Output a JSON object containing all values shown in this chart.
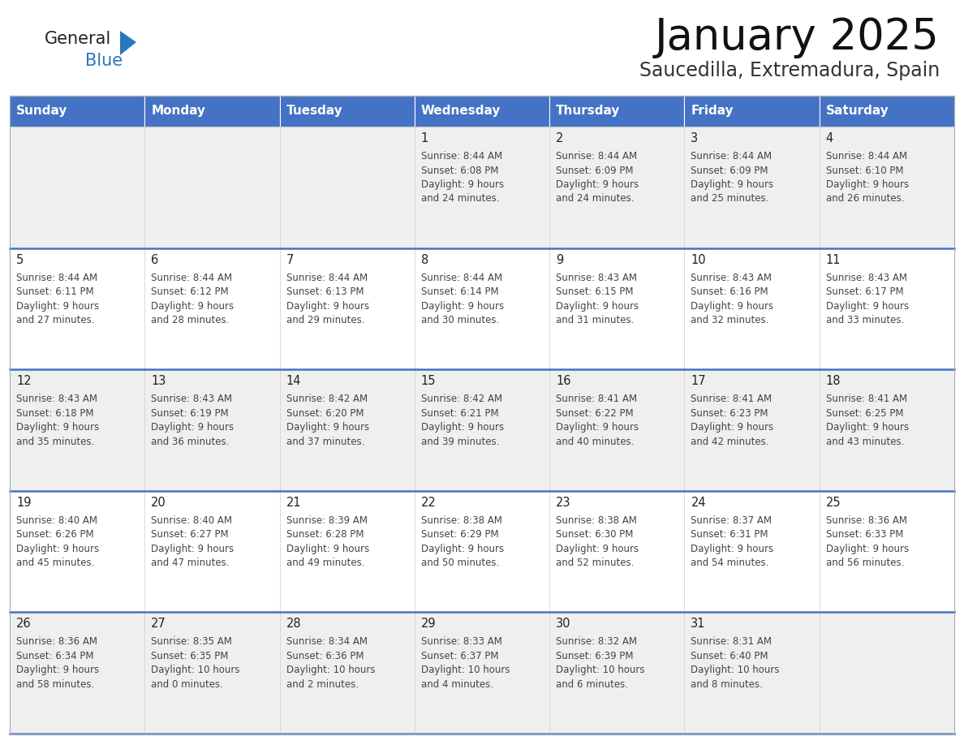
{
  "title": "January 2025",
  "subtitle": "Saucedilla, Extremadura, Spain",
  "header_bg": "#4472C4",
  "header_text_color": "#FFFFFF",
  "days_of_week": [
    "Sunday",
    "Monday",
    "Tuesday",
    "Wednesday",
    "Thursday",
    "Friday",
    "Saturday"
  ],
  "title_font_size": 38,
  "subtitle_font_size": 17,
  "cell_text_color": "#444444",
  "day_number_color": "#222222",
  "alt_row_bg": "#efefef",
  "white_bg": "#ffffff",
  "logo_general_color": "#222222",
  "logo_blue_color": "#2878BE",
  "header_separator_color": "#3060a0",
  "row_separator_color": "#4472C4",
  "calendar_data": [
    [
      null,
      null,
      null,
      {
        "day": 1,
        "sunrise": "8:44 AM",
        "sunset": "6:08 PM",
        "daylight": "9 hours",
        "daylight2": "and 24 minutes."
      },
      {
        "day": 2,
        "sunrise": "8:44 AM",
        "sunset": "6:09 PM",
        "daylight": "9 hours",
        "daylight2": "and 24 minutes."
      },
      {
        "day": 3,
        "sunrise": "8:44 AM",
        "sunset": "6:09 PM",
        "daylight": "9 hours",
        "daylight2": "and 25 minutes."
      },
      {
        "day": 4,
        "sunrise": "8:44 AM",
        "sunset": "6:10 PM",
        "daylight": "9 hours",
        "daylight2": "and 26 minutes."
      }
    ],
    [
      {
        "day": 5,
        "sunrise": "8:44 AM",
        "sunset": "6:11 PM",
        "daylight": "9 hours",
        "daylight2": "and 27 minutes."
      },
      {
        "day": 6,
        "sunrise": "8:44 AM",
        "sunset": "6:12 PM",
        "daylight": "9 hours",
        "daylight2": "and 28 minutes."
      },
      {
        "day": 7,
        "sunrise": "8:44 AM",
        "sunset": "6:13 PM",
        "daylight": "9 hours",
        "daylight2": "and 29 minutes."
      },
      {
        "day": 8,
        "sunrise": "8:44 AM",
        "sunset": "6:14 PM",
        "daylight": "9 hours",
        "daylight2": "and 30 minutes."
      },
      {
        "day": 9,
        "sunrise": "8:43 AM",
        "sunset": "6:15 PM",
        "daylight": "9 hours",
        "daylight2": "and 31 minutes."
      },
      {
        "day": 10,
        "sunrise": "8:43 AM",
        "sunset": "6:16 PM",
        "daylight": "9 hours",
        "daylight2": "and 32 minutes."
      },
      {
        "day": 11,
        "sunrise": "8:43 AM",
        "sunset": "6:17 PM",
        "daylight": "9 hours",
        "daylight2": "and 33 minutes."
      }
    ],
    [
      {
        "day": 12,
        "sunrise": "8:43 AM",
        "sunset": "6:18 PM",
        "daylight": "9 hours",
        "daylight2": "and 35 minutes."
      },
      {
        "day": 13,
        "sunrise": "8:43 AM",
        "sunset": "6:19 PM",
        "daylight": "9 hours",
        "daylight2": "and 36 minutes."
      },
      {
        "day": 14,
        "sunrise": "8:42 AM",
        "sunset": "6:20 PM",
        "daylight": "9 hours",
        "daylight2": "and 37 minutes."
      },
      {
        "day": 15,
        "sunrise": "8:42 AM",
        "sunset": "6:21 PM",
        "daylight": "9 hours",
        "daylight2": "and 39 minutes."
      },
      {
        "day": 16,
        "sunrise": "8:41 AM",
        "sunset": "6:22 PM",
        "daylight": "9 hours",
        "daylight2": "and 40 minutes."
      },
      {
        "day": 17,
        "sunrise": "8:41 AM",
        "sunset": "6:23 PM",
        "daylight": "9 hours",
        "daylight2": "and 42 minutes."
      },
      {
        "day": 18,
        "sunrise": "8:41 AM",
        "sunset": "6:25 PM",
        "daylight": "9 hours",
        "daylight2": "and 43 minutes."
      }
    ],
    [
      {
        "day": 19,
        "sunrise": "8:40 AM",
        "sunset": "6:26 PM",
        "daylight": "9 hours",
        "daylight2": "and 45 minutes."
      },
      {
        "day": 20,
        "sunrise": "8:40 AM",
        "sunset": "6:27 PM",
        "daylight": "9 hours",
        "daylight2": "and 47 minutes."
      },
      {
        "day": 21,
        "sunrise": "8:39 AM",
        "sunset": "6:28 PM",
        "daylight": "9 hours",
        "daylight2": "and 49 minutes."
      },
      {
        "day": 22,
        "sunrise": "8:38 AM",
        "sunset": "6:29 PM",
        "daylight": "9 hours",
        "daylight2": "and 50 minutes."
      },
      {
        "day": 23,
        "sunrise": "8:38 AM",
        "sunset": "6:30 PM",
        "daylight": "9 hours",
        "daylight2": "and 52 minutes."
      },
      {
        "day": 24,
        "sunrise": "8:37 AM",
        "sunset": "6:31 PM",
        "daylight": "9 hours",
        "daylight2": "and 54 minutes."
      },
      {
        "day": 25,
        "sunrise": "8:36 AM",
        "sunset": "6:33 PM",
        "daylight": "9 hours",
        "daylight2": "and 56 minutes."
      }
    ],
    [
      {
        "day": 26,
        "sunrise": "8:36 AM",
        "sunset": "6:34 PM",
        "daylight": "9 hours",
        "daylight2": "and 58 minutes."
      },
      {
        "day": 27,
        "sunrise": "8:35 AM",
        "sunset": "6:35 PM",
        "daylight": "10 hours",
        "daylight2": "and 0 minutes."
      },
      {
        "day": 28,
        "sunrise": "8:34 AM",
        "sunset": "6:36 PM",
        "daylight": "10 hours",
        "daylight2": "and 2 minutes."
      },
      {
        "day": 29,
        "sunrise": "8:33 AM",
        "sunset": "6:37 PM",
        "daylight": "10 hours",
        "daylight2": "and 4 minutes."
      },
      {
        "day": 30,
        "sunrise": "8:32 AM",
        "sunset": "6:39 PM",
        "daylight": "10 hours",
        "daylight2": "and 6 minutes."
      },
      {
        "day": 31,
        "sunrise": "8:31 AM",
        "sunset": "6:40 PM",
        "daylight": "10 hours",
        "daylight2": "and 8 minutes."
      },
      null
    ]
  ]
}
